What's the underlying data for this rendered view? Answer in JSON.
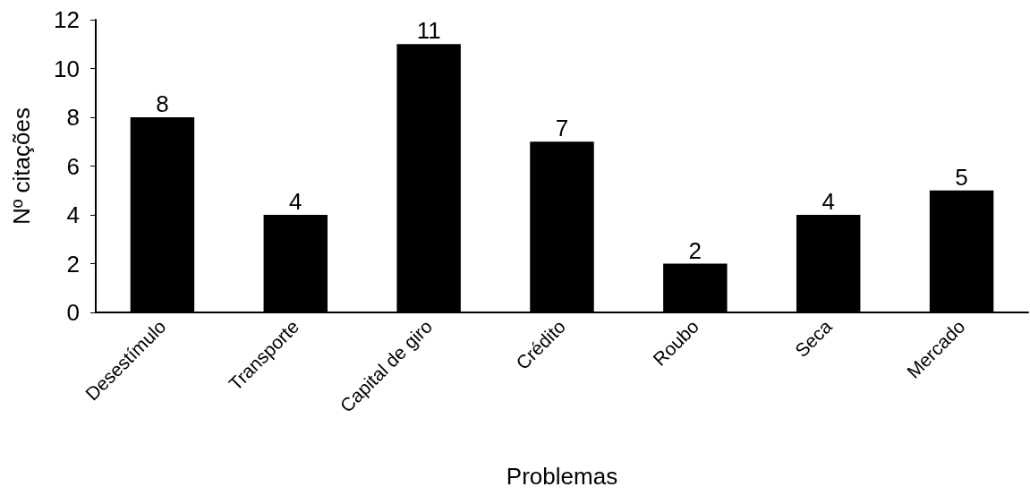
{
  "chart_data": {
    "type": "bar",
    "xlabel": "Problemas",
    "ylabel": "Nº citações",
    "categories": [
      "Desestímulo",
      "Transporte",
      "Capital de giro",
      "Crédito",
      "Roubo",
      "Seca",
      "Mercado"
    ],
    "values": [
      8,
      4,
      11,
      7,
      2,
      4,
      5
    ],
    "color": "#000000",
    "ylim": [
      0,
      12
    ],
    "yticks": [
      0,
      2,
      4,
      6,
      8,
      10,
      12
    ],
    "grid": false,
    "data_labels": true
  }
}
